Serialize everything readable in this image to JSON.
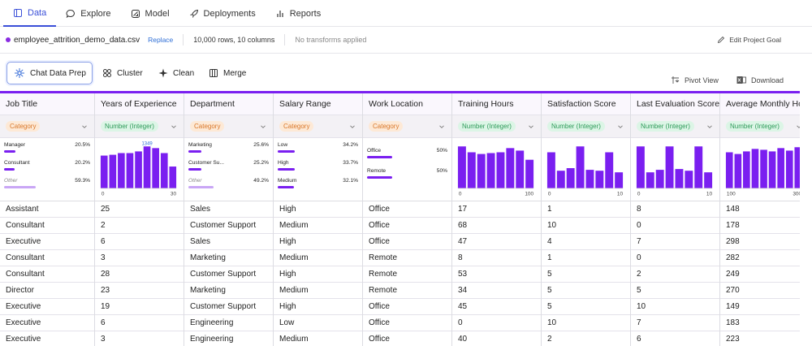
{
  "nav": {
    "tabs": [
      {
        "label": "Data",
        "icon": "table-icon"
      },
      {
        "label": "Explore",
        "icon": "chat-icon"
      },
      {
        "label": "Model",
        "icon": "model-icon"
      },
      {
        "label": "Deployments",
        "icon": "rocket-icon"
      },
      {
        "label": "Reports",
        "icon": "bar-chart-icon"
      }
    ]
  },
  "file": {
    "name": "employee_attrition_demo_data.csv",
    "replace": "Replace",
    "shape": "10,000 rows, 10 columns",
    "transforms": "No transforms applied",
    "edit_goal": "Edit Project Goal"
  },
  "toolbar": {
    "chat": "Chat Data Prep",
    "cluster": "Cluster",
    "clean": "Clean",
    "merge": "Merge",
    "pivot": "Pivot View",
    "download": "Download"
  },
  "colors": {
    "accent": "#7a1ff0",
    "link": "#2f6fd6",
    "active_tab": "#3a4fd8"
  },
  "columns": [
    {
      "header": "Job Title",
      "type": "Category",
      "kind": "cat",
      "cats": [
        {
          "label": "Manager",
          "pct": "20.5%",
          "frac": 0.205
        },
        {
          "label": "Consultant",
          "pct": "20.2%",
          "frac": 0.202
        },
        {
          "label": "Other",
          "pct": "59.3%",
          "frac": 0.593,
          "other": true
        }
      ]
    },
    {
      "header": "Years of Experience",
      "type": "Number (Integer)",
      "kind": "num",
      "min": "0",
      "max": "30",
      "peak": "1349",
      "bars": [
        0.78,
        0.8,
        0.84,
        0.84,
        0.88,
        1.0,
        0.96,
        0.84,
        0.52
      ]
    },
    {
      "header": "Department",
      "type": "Category",
      "kind": "cat",
      "cats": [
        {
          "label": "Marketing",
          "pct": "25.6%",
          "frac": 0.256
        },
        {
          "label": "Customer Su...",
          "pct": "25.2%",
          "frac": 0.252
        },
        {
          "label": "Other",
          "pct": "49.2%",
          "frac": 0.492,
          "other": true
        }
      ]
    },
    {
      "header": "Salary Range",
      "type": "Category",
      "kind": "cat",
      "cats": [
        {
          "label": "Low",
          "pct": "34.2%",
          "frac": 0.342
        },
        {
          "label": "High",
          "pct": "33.7%",
          "frac": 0.337
        },
        {
          "label": "Medium",
          "pct": "32.1%",
          "frac": 0.321
        }
      ]
    },
    {
      "header": "Work Location",
      "type": "Category",
      "kind": "cat",
      "cats": [
        {
          "label": "Office",
          "pct": "50%",
          "frac": 0.5
        },
        {
          "label": "Remote",
          "pct": "50%",
          "frac": 0.5
        }
      ]
    },
    {
      "header": "Training Hours",
      "type": "Number (Integer)",
      "kind": "num",
      "min": "0",
      "max": "100",
      "bars": [
        1.0,
        0.86,
        0.82,
        0.84,
        0.86,
        0.96,
        0.9,
        0.68
      ]
    },
    {
      "header": "Satisfaction Score",
      "type": "Number (Integer)",
      "kind": "num",
      "min": "0",
      "max": "10",
      "bars": [
        0.86,
        0.42,
        0.48,
        1.0,
        0.44,
        0.42,
        0.86,
        0.38
      ]
    },
    {
      "header": "Last Evaluation Score",
      "type": "Number (Integer)",
      "kind": "num",
      "min": "0",
      "max": "10",
      "bars": [
        1.0,
        0.38,
        0.44,
        1.0,
        0.46,
        0.42,
        1.0,
        0.38
      ]
    },
    {
      "header": "Average Monthly Hours",
      "type": "Number (Integer)",
      "kind": "num",
      "min": "100",
      "max": "300",
      "bars": [
        0.86,
        0.82,
        0.88,
        0.94,
        0.92,
        0.88,
        0.96,
        0.9,
        0.98
      ]
    }
  ],
  "rows": [
    [
      "Assistant",
      "25",
      "Sales",
      "High",
      "Office",
      "17",
      "1",
      "8",
      "148"
    ],
    [
      "Consultant",
      "2",
      "Customer Support",
      "Medium",
      "Office",
      "68",
      "10",
      "0",
      "178"
    ],
    [
      "Executive",
      "6",
      "Sales",
      "High",
      "Office",
      "47",
      "4",
      "7",
      "298"
    ],
    [
      "Consultant",
      "3",
      "Marketing",
      "Medium",
      "Remote",
      "8",
      "1",
      "0",
      "282"
    ],
    [
      "Consultant",
      "28",
      "Customer Support",
      "High",
      "Remote",
      "53",
      "5",
      "2",
      "249"
    ],
    [
      "Director",
      "23",
      "Marketing",
      "Medium",
      "Remote",
      "34",
      "5",
      "5",
      "270"
    ],
    [
      "Executive",
      "19",
      "Customer Support",
      "High",
      "Office",
      "45",
      "5",
      "10",
      "149"
    ],
    [
      "Executive",
      "6",
      "Engineering",
      "Low",
      "Office",
      "0",
      "10",
      "7",
      "183"
    ],
    [
      "Executive",
      "3",
      "Engineering",
      "Medium",
      "Office",
      "40",
      "2",
      "6",
      "223"
    ]
  ]
}
